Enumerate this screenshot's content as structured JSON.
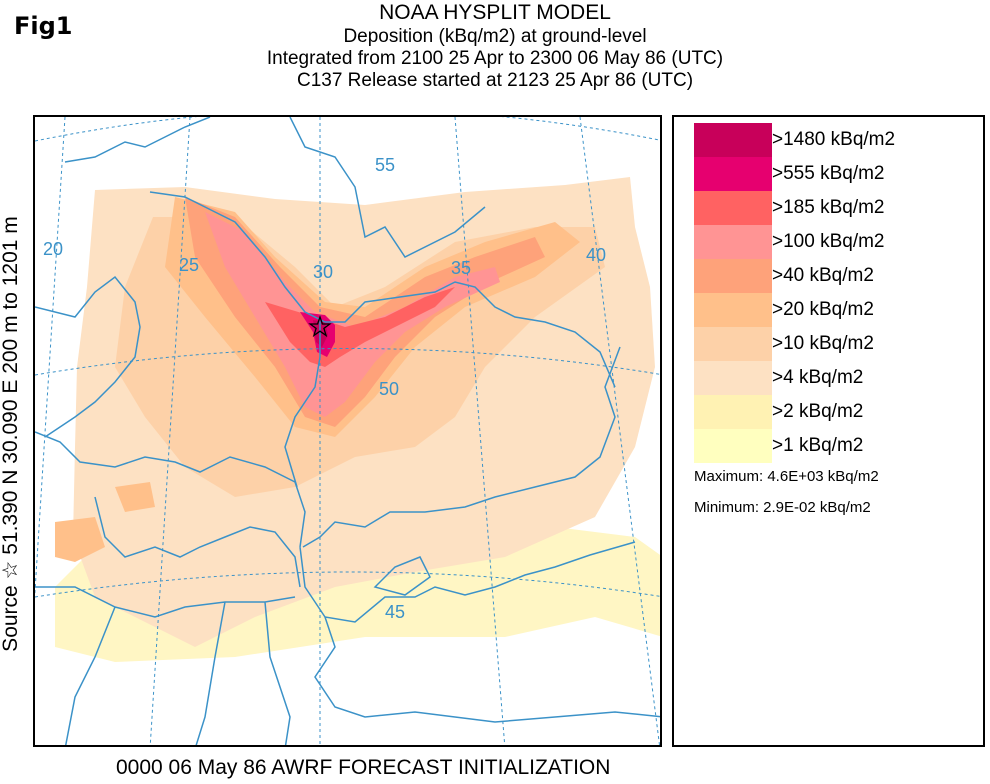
{
  "figure_label": "Fig1",
  "title": {
    "line1": "NOAA HYSPLIT MODEL",
    "line2": "Deposition  (kBq/m2) at ground-level",
    "line3": "Integrated from 2100 25 Apr to 2300 06 May 86 (UTC)",
    "line4": "C137 Release started at 2123 25 Apr 86 (UTC)"
  },
  "side_label": "Source ☆ 51.390  N  30.090  E    200 m to 1201 m",
  "footer": "0000 06 May 86 AWRF FORECAST INITIALIZATION",
  "legend": {
    "items": [
      {
        "label": ">1480 kBq/m2",
        "color": "#c8005a"
      },
      {
        "label": ">555 kBq/m2",
        "color": "#e6006f"
      },
      {
        "label": ">185 kBq/m2",
        "color": "#ff6262"
      },
      {
        "label": ">100 kBq/m2",
        "color": "#ff9494"
      },
      {
        "label": ">40 kBq/m2",
        "color": "#fea27a"
      },
      {
        "label": ">20 kBq/m2",
        "color": "#ffc08a"
      },
      {
        "label": ">10 kBq/m2",
        "color": "#fdd1a8"
      },
      {
        "label": ">4 kBq/m2",
        "color": "#fde1c3"
      },
      {
        "label": ">2 kBq/m2",
        "color": "#fff2b3"
      },
      {
        "label": ">1 kBq/m2",
        "color": "#ffffbf"
      }
    ],
    "maximum": "Maximum: 4.6E+03 kBq/m2",
    "minimum": "Minimum: 2.9E-02 kBq/m2"
  },
  "map": {
    "longitude_labels": [
      "20",
      "25",
      "30",
      "35",
      "40"
    ],
    "latitude_labels": [
      "55",
      "50",
      "45"
    ],
    "source_marker": "star-icon",
    "grid_color": "#3b92c8",
    "border_color": "#3b92c8"
  }
}
